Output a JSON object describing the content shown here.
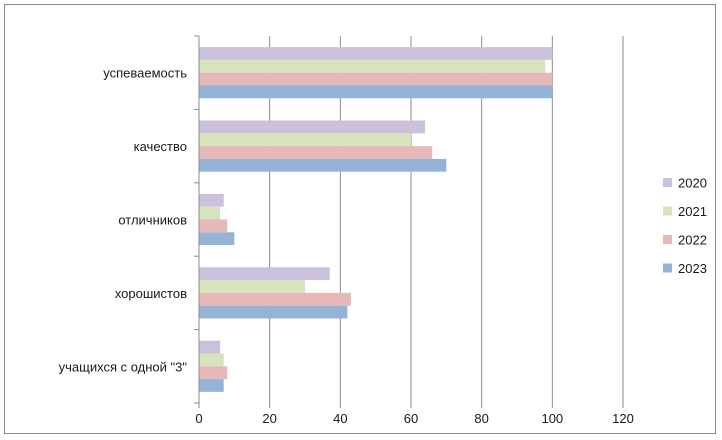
{
  "chart_data": {
    "type": "bar",
    "orientation": "horizontal",
    "title": "",
    "xlabel": "",
    "ylabel": "",
    "categories": [
      "успеваемость",
      "качество",
      "отличников",
      "хорошистов",
      "учащихся с одной \"3\""
    ],
    "series": [
      {
        "name": "2020",
        "color": "#ccc1da",
        "values": [
          100,
          64,
          7,
          37,
          6
        ]
      },
      {
        "name": "2021",
        "color": "#d7e4bd",
        "values": [
          98,
          60,
          6,
          30,
          7
        ]
      },
      {
        "name": "2022",
        "color": "#e6b9b8",
        "values": [
          100,
          66,
          8,
          43,
          8
        ]
      },
      {
        "name": "2023",
        "color": "#95b3d7",
        "values": [
          100,
          70,
          10,
          42,
          7
        ]
      }
    ],
    "xlim": [
      0,
      120
    ],
    "xticks": [
      0,
      20,
      40,
      60,
      80,
      100,
      120
    ],
    "grid": "vertical",
    "legend_position": "right"
  }
}
